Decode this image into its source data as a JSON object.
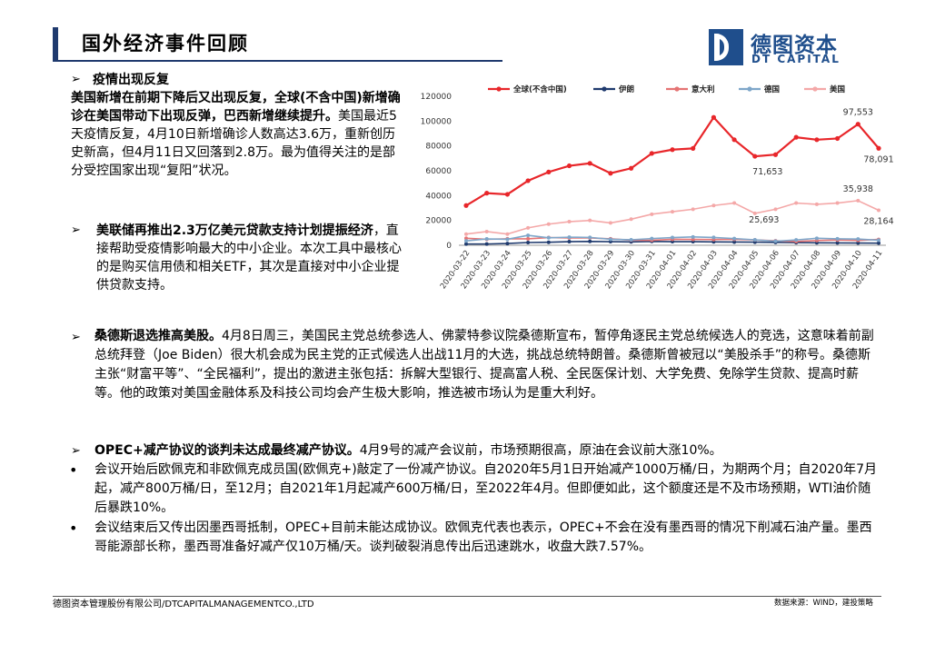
{
  "header": {
    "title": "国外经济事件回顾"
  },
  "logo": {
    "cn": "德图资本",
    "en": "DT CAPITAL"
  },
  "section1": {
    "bullet": "➢",
    "heading": "疫情出现反复",
    "bold_text": "美国新增在前期下降后又出现反复，全球(不含中国)新增确诊在美国带动下出现反弹，巴西新增继续提升。",
    "body_text": "美国最近5天疫情反复，4月10日新增确诊人数高达3.6万，重新创历史新高，但4月11日又回落到2.8万。最为值得关注的是部分受控国家出现“复阳”状况。"
  },
  "section2": {
    "bullet": "➢",
    "bold_text": "美联储再推出2.3万亿美元贷款支持计划提振经济",
    "body_text": "，直接帮助受疫情影响最大的中小企业。本次工具中最核心的是购买信用债和相关ETF，其次是直接对中小企业提供贷款支持。"
  },
  "section3": {
    "bullet": "➢",
    "bold_text": "桑德斯退选推高美股。",
    "body_text": "4月8日周三，美国民主党总统参选人、佛蒙特参议院桑德斯宣布，暂停角逐民主党总统候选人的竞选，这意味着前副总统拜登（Joe Biden）很大机会成为民主党的正式候选人出战11月的大选，挑战总统特朗普。桑德斯曾被冠以“美股杀手”的称号。桑德斯主张“财富平等”、“全民福利”，提出的激进主张包括：拆解大型银行、提高富人税、全民医保计划、大学免费、免除学生贷款、提高时薪等。他的政策对美国金融体系及科技公司均会产生极大影响，推选被市场认为是重大利好。"
  },
  "section4": {
    "bullet": "➢",
    "bold_text": "OPEC+减产协议的谈判未达成最终减产协议。",
    "body_text": "4月9号的减产会议前，市场预期很高，原油在会议前大涨10%。",
    "sub_bullet": "•",
    "sub1": "会议开始后欧佩克和非欧佩克成员国(欧佩克+)敲定了一份减产协议。自2020年5月1日开始减产1000万桶/日，为期两个月；自2020年7月起，减产800万桶/日，至12月；自2021年1月起减产600万桶/日，至2022年4月。但即便如此，这个额度还是不及市场预期，WTI油价随后暴跌10%。",
    "sub2": "会议结束后又传出因墨西哥抵制，OPEC+目前未能达成协议。欧佩克代表也表示，OPEC+不会在没有墨西哥的情况下削减石油产量。墨西哥能源部长称，墨西哥准备好减产仅10万桶/天。谈判破裂消息传出后迅速跳水，收盘大跌7.57%。"
  },
  "footer": {
    "left": "德图资本管理股份有限公司/DTCAPITALMANAGEMENTCO.,LTD",
    "right": "数据来源：WIND，建投策略"
  },
  "chart_data": {
    "type": "line",
    "categories": [
      "2020-03-22",
      "2020-03-23",
      "2020-03-24",
      "2020-03-25",
      "2020-03-26",
      "2020-03-27",
      "2020-03-28",
      "2020-03-29",
      "2020-03-30",
      "2020-03-31",
      "2020-04-01",
      "2020-04-02",
      "2020-04-03",
      "2020-04-04",
      "2020-04-05",
      "2020-04-06",
      "2020-04-07",
      "2020-04-08",
      "2020-04-09",
      "2020-04-10",
      "2020-04-11"
    ],
    "ylim": [
      0,
      120000
    ],
    "yticks": [
      "0",
      "20000",
      "40000",
      "60000",
      "80000",
      "100000",
      "120000"
    ],
    "legend_position": "top",
    "series": [
      {
        "name": "全球(不含中国)",
        "color": "#e8262a",
        "values": [
          32000,
          42000,
          41000,
          52000,
          59000,
          64000,
          66000,
          58000,
          62000,
          74000,
          77000,
          78000,
          103000,
          85000,
          71653,
          73000,
          87000,
          85000,
          86000,
          97553,
          78091
        ]
      },
      {
        "name": "伊朗",
        "color": "#1f3a6e",
        "values": [
          1000,
          1000,
          1400,
          2200,
          2400,
          2900,
          3100,
          2900,
          2700,
          3100,
          2900,
          2900,
          2700,
          2600,
          2500,
          2300,
          2100,
          2000,
          1900,
          1800,
          1700
        ]
      },
      {
        "name": "意大利",
        "color": "#e57373",
        "values": [
          5600,
          4800,
          5200,
          5200,
          6200,
          5900,
          5900,
          5200,
          4100,
          4000,
          4800,
          4700,
          4600,
          4800,
          4300,
          3600,
          3000,
          3800,
          4200,
          3900,
          4700
        ]
      },
      {
        "name": "德国",
        "color": "#7ea6c9",
        "values": [
          3500,
          5100,
          4800,
          8000,
          6000,
          6500,
          6300,
          4800,
          4400,
          5400,
          6200,
          6700,
          6300,
          5400,
          4400,
          3300,
          4300,
          5600,
          5200,
          5000,
          4100
        ]
      },
      {
        "name": "美国",
        "color": "#f4a8a8",
        "values": [
          9000,
          11000,
          9000,
          14000,
          17000,
          19000,
          20000,
          18000,
          21000,
          25000,
          27000,
          29000,
          32000,
          34000,
          25693,
          29000,
          34000,
          33000,
          34000,
          35938,
          28164
        ]
      }
    ],
    "annotations": [
      "97,553",
      "71,653",
      "78,091",
      "35,938",
      "25,693",
      "28,164"
    ]
  }
}
